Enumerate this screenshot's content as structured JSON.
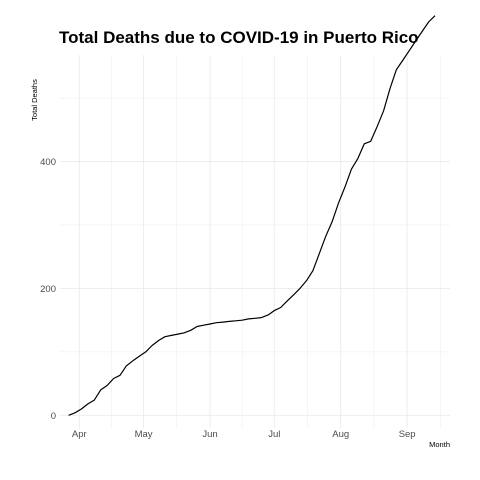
{
  "chart_data": {
    "type": "line",
    "title": "Total Deaths due to COVID-19 in Puerto Rico",
    "xlabel": "Month",
    "ylabel": "Total Deaths",
    "x_ticks": [
      {
        "label": "Apr",
        "day": 5
      },
      {
        "label": "May",
        "day": 35
      },
      {
        "label": "Jun",
        "day": 66
      },
      {
        "label": "Jul",
        "day": 96
      },
      {
        "label": "Aug",
        "day": 127
      },
      {
        "label": "Sep",
        "day": 158
      }
    ],
    "y_ticks": [
      0,
      200,
      400
    ],
    "xlim": [
      -4,
      178
    ],
    "ylim": [
      -20,
      568
    ],
    "grid": true,
    "colors": {
      "line": "#000000",
      "grid": "#ebebeb",
      "tick": "#4d4d4d"
    },
    "series": [
      {
        "x": [
          0,
          3,
          6,
          9,
          12,
          15,
          18,
          21,
          24,
          27,
          30,
          33,
          36,
          39,
          42,
          45,
          48,
          51,
          54,
          57,
          60,
          63,
          66,
          69,
          72,
          75,
          78,
          81,
          84,
          87,
          90,
          93,
          96,
          99,
          102,
          105,
          108,
          111,
          114,
          117,
          120,
          123,
          126,
          129,
          132,
          135,
          138,
          141,
          144,
          147,
          150,
          153,
          156,
          159,
          162,
          165,
          168,
          171
        ],
        "values": [
          0,
          4,
          10,
          18,
          24,
          40,
          47,
          58,
          63,
          78,
          86,
          93,
          100,
          110,
          118,
          124,
          126,
          128,
          130,
          134,
          140,
          142,
          144,
          146,
          147,
          148,
          149,
          150,
          152,
          153,
          154,
          158,
          165,
          170,
          180,
          190,
          200,
          212,
          228,
          255,
          282,
          305,
          335,
          360,
          388,
          405,
          428,
          432,
          455,
          480,
          515,
          545,
          560,
          575,
          590,
          605,
          620,
          630
        ]
      }
    ]
  }
}
